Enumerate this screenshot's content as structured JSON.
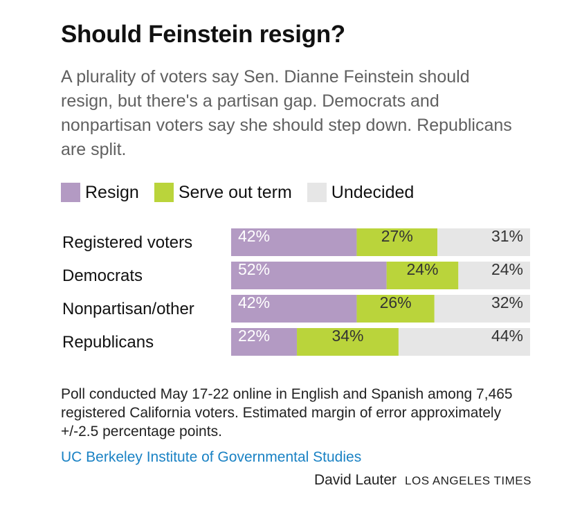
{
  "header": {
    "title": "Should Feinstein resign?",
    "subtitle": "A plurality of voters say Sen. Dianne Feinstein should resign, but there's a partisan gap. Democrats and nonpartisan voters say she should step down. Republicans are split."
  },
  "legend": [
    {
      "label": "Resign",
      "color": "#b39ac3"
    },
    {
      "label": "Serve out term",
      "color": "#bad43b"
    },
    {
      "label": "Undecided",
      "color": "#e6e6e6"
    }
  ],
  "chart_data": {
    "type": "bar",
    "orientation": "horizontal",
    "stacked": true,
    "normalized": true,
    "categories": [
      "Registered voters",
      "Democrats",
      "Nonpartisan/other",
      "Republicans"
    ],
    "series": [
      {
        "name": "Resign",
        "color": "#b39ac3",
        "values": [
          42,
          52,
          42,
          22
        ],
        "labels": [
          "42%",
          "52%",
          "42%",
          "22%"
        ]
      },
      {
        "name": "Serve out term",
        "color": "#bad43b",
        "values": [
          27,
          24,
          26,
          34
        ],
        "labels": [
          "27%",
          "24%",
          "26%",
          "34%"
        ]
      },
      {
        "name": "Undecided",
        "color": "#e6e6e6",
        "values": [
          31,
          24,
          32,
          44
        ],
        "labels": [
          "31%",
          "24%",
          "32%",
          "44%"
        ]
      }
    ],
    "xlim": [
      0,
      100
    ]
  },
  "footer": {
    "note": "Poll conducted May 17-22 online in English and Spanish among 7,465 registered California voters. Estimated margin of error approximately +/-2.5 percentage points.",
    "source": "UC Berkeley Institute of Governmental Studies",
    "author": "David Lauter",
    "publication": "LOS ANGELES TIMES"
  }
}
